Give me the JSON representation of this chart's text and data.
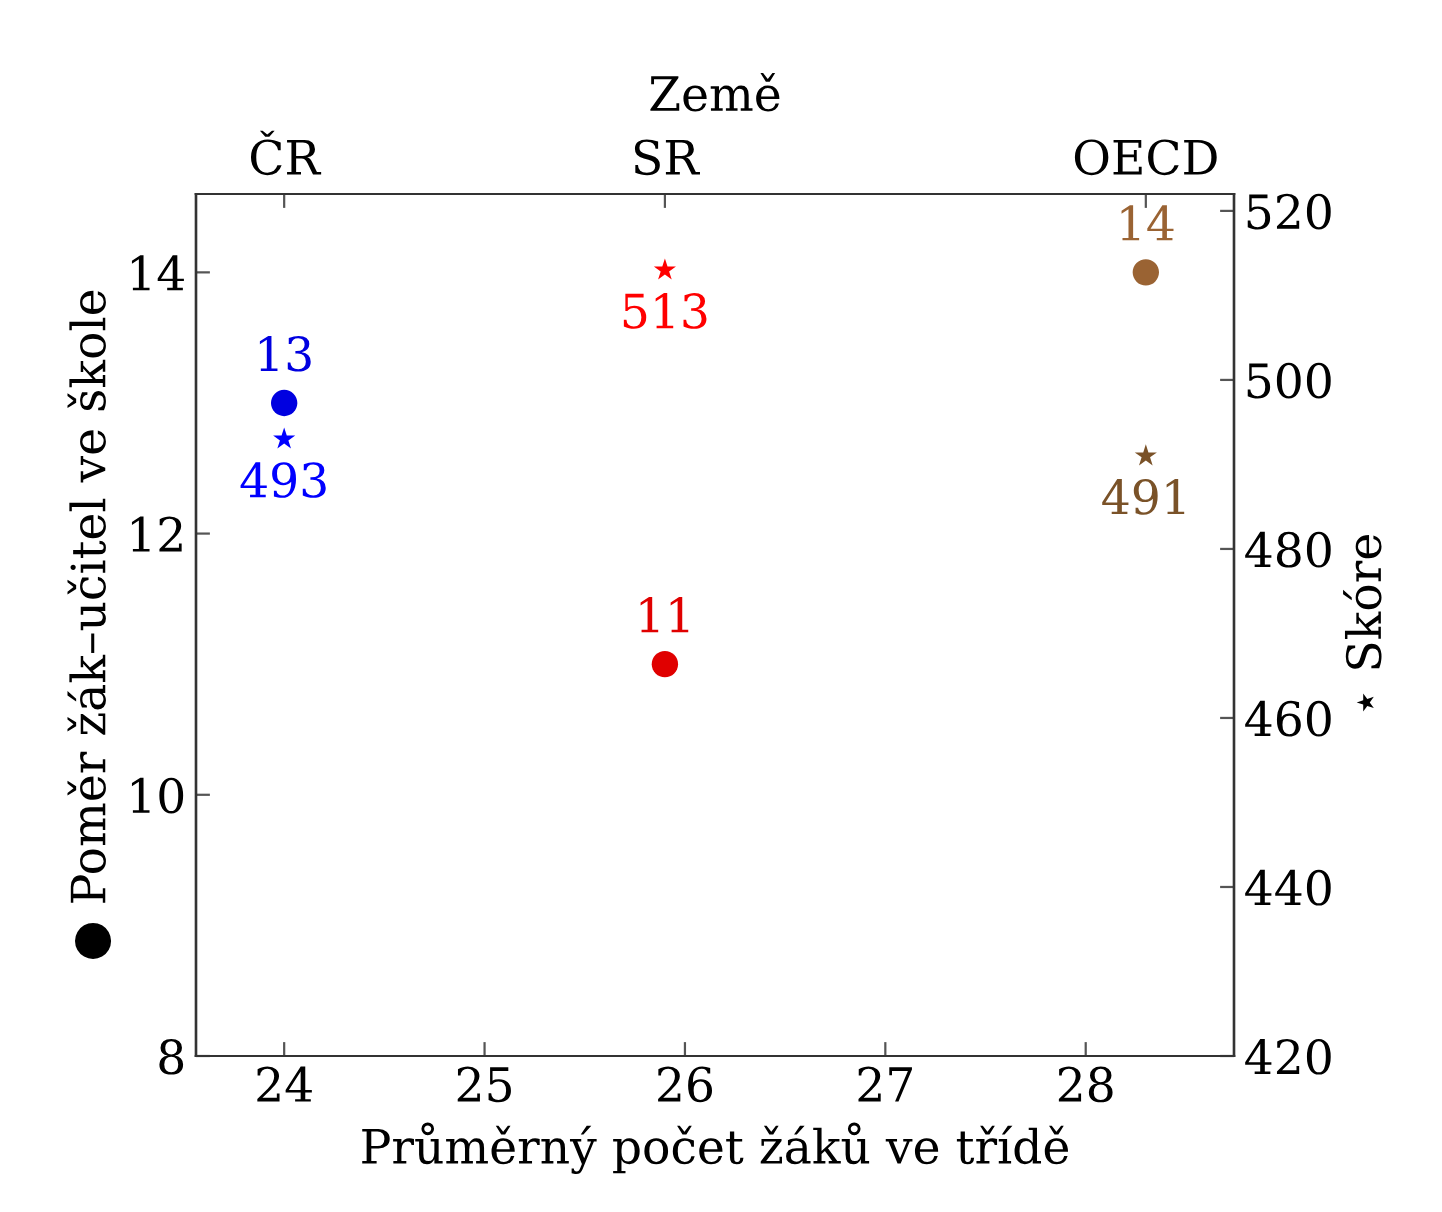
{
  "chart_data": {
    "type": "scatter",
    "xlabel": "Průměrný počet žáků ve třídě",
    "ylabel": "● Poměr žák–učitel ve škole",
    "y2label": "⋆ Skóre",
    "x2label": "Země",
    "xlim": [
      23.56,
      28.74
    ],
    "xticks": [
      24,
      25,
      26,
      27,
      28
    ],
    "annotations": [
      {
        "text": "ČR",
        "x": 24
      },
      {
        "text": "SR",
        "x": 25.9
      },
      {
        "text": "OECD",
        "x": 28.3
      }
    ],
    "ylim": [
      8,
      14.6
    ],
    "yticks": [
      8,
      10,
      12,
      14
    ],
    "y2lim": [
      420,
      522
    ],
    "y2ticks": [
      420,
      440,
      460,
      480,
      500,
      520
    ],
    "grid": false,
    "legend": false,
    "series": [
      {
        "x": [
          24
        ],
        "values": [
          13
        ],
        "color": "#0000e0",
        "marker": "circle",
        "value_labels": [
          "13"
        ]
      },
      {
        "x": [
          25.9
        ],
        "values": [
          11
        ],
        "color": "#e00000",
        "marker": "circle",
        "value_labels": [
          "11"
        ]
      },
      {
        "x": [
          28.3
        ],
        "values": [
          14
        ],
        "color": "#9a6333",
        "marker": "circle",
        "value_labels": [
          "14"
        ]
      },
      {
        "x": [
          24
        ],
        "values": [
          493
        ],
        "color": "#0000ff",
        "marker": "star",
        "axis": "y2",
        "value_labels": [
          "493"
        ]
      },
      {
        "x": [
          25.9
        ],
        "values": [
          513
        ],
        "color": "#ff0000",
        "marker": "star",
        "axis": "y2",
        "value_labels": [
          "513"
        ]
      },
      {
        "x": [
          28.3
        ],
        "values": [
          491
        ],
        "color": "#7a5228",
        "marker": "star",
        "axis": "y2",
        "value_labels": [
          "491"
        ]
      }
    ]
  }
}
